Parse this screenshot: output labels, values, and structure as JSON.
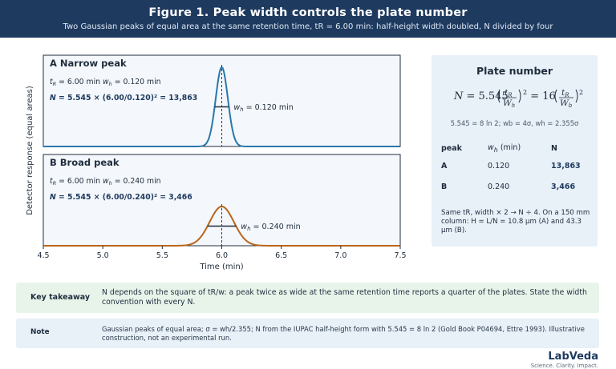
{
  "header": {
    "title": "Figure 1. Peak width controls the plate number",
    "subtitle": "Two Gaussian peaks of equal area at the same retention time, tR = 6.00 min: half-height width doubled, N divided by four"
  },
  "chart_data": {
    "type": "line",
    "xlabel": "Time (min)",
    "ylabel": "Detector response (equal areas)",
    "xlim": [
      4.5,
      7.5
    ],
    "xticks": [
      "4.5",
      "5.0",
      "5.5",
      "6.0",
      "6.5",
      "7.0",
      "7.5"
    ],
    "panels": [
      {
        "letter": "A",
        "name": "Narrow peak",
        "tr": 6.0,
        "wh": 0.12,
        "color": "#2878a8",
        "params": {
          "tr_label": "t",
          "tr_sub": "R",
          "tr_value": " = 6.00 min",
          "wh_label": "w",
          "wh_sub": "h",
          "wh_value": " = 0.120 min"
        },
        "equation": {
          "lhs": "N",
          "rhs": " = 5.545 × (6.00/0.120)² = 13,863"
        },
        "width_label": {
          "w": "w",
          "sub": "h",
          "val": " = 0.120 min"
        }
      },
      {
        "letter": "B",
        "name": "Broad peak",
        "tr": 6.0,
        "wh": 0.24,
        "color": "#b8651a",
        "params": {
          "tr_label": "t",
          "tr_sub": "R",
          "tr_value": " = 6.00 min",
          "wh_label": "w",
          "wh_sub": "h",
          "wh_value": " = 0.240 min"
        },
        "equation": {
          "lhs": "N",
          "rhs": " = 5.545 × (6.00/0.240)² = 3,466"
        },
        "width_label": {
          "w": "w",
          "sub": "h",
          "val": " = 0.240 min"
        }
      }
    ]
  },
  "plate": {
    "title": "Plate number",
    "formula": {
      "n": "N",
      "eq1": " = 5.545",
      "tr": "t",
      "trs": "R",
      "wh": "W",
      "whs": "h",
      "sq1": "2",
      "eq2": " = 16",
      "tr2": "t",
      "trs2": "R",
      "wb": "W",
      "wbs": "b",
      "sq2": "2"
    },
    "note": "5.545 = 8 ln 2;  wb = 4σ,  wh = 2.355σ",
    "table": {
      "headers": {
        "peak": "peak",
        "wh_w": "w",
        "wh_sub": "h",
        "wh_unit": " (min)",
        "n": "N"
      },
      "rows": [
        {
          "peak": "A",
          "wh": "0.120",
          "n": "13,863"
        },
        {
          "peak": "B",
          "wh": "0.240",
          "n": "3,466"
        }
      ]
    },
    "summary": "Same tR, width × 2 → N ÷ 4. On a 150 mm column: H = L/N = 10.8 µm (A) and 43.3 µm (B)."
  },
  "key": {
    "label": "Key takeaway",
    "text": "N depends on the square of tR/w: a peak twice as wide at the same retention time reports a quarter of the plates. State the width convention with every N."
  },
  "note": {
    "label": "Note",
    "text": "Gaussian peaks of equal area; σ = wh/2.355; N from the IUPAC half-height form with 5.545 = 8 ln 2 (Gold Book P04694, Ettre 1993). Illustrative construction, not an experimental run."
  },
  "brand": {
    "name": "LabVeda",
    "tagline": "Science. Clarity. Impact."
  }
}
